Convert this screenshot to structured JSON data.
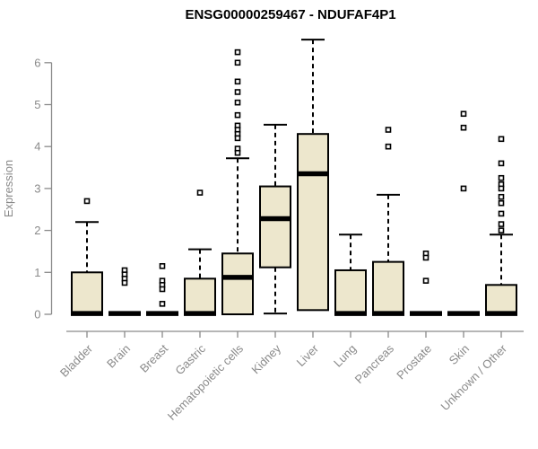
{
  "chart_data": {
    "type": "boxplot",
    "title": "ENSG00000259467 - NDUFAF4P1",
    "ylabel": "Expression",
    "xlabel": "",
    "yticks": [
      0,
      1,
      2,
      3,
      4,
      5,
      6
    ],
    "ylim": [
      0,
      6.7
    ],
    "grid": false,
    "legend": "none",
    "colors": {
      "box_fill": "#EDE7CD",
      "box_stroke": "#000000",
      "median": "#000000",
      "whisker": "#000000",
      "outlier_fill": "#FFFFFF",
      "outlier_stroke": "#000000",
      "axis": "#8A8A8A",
      "tick_label": "#8A8A8A",
      "title": "#000000"
    },
    "categories": [
      "Bladder",
      "Brain",
      "Breast",
      "Gastric",
      "Hematopoietic cells",
      "Kidney",
      "Liver",
      "Lung",
      "Pancreas",
      "Prostate",
      "Skin",
      "Unknown / Other"
    ],
    "series": [
      {
        "name": "Bladder",
        "q1": 0,
        "median": 0.02,
        "q3": 1.0,
        "whisker_low": 0,
        "whisker_high": 2.2,
        "outliers": [
          2.7
        ]
      },
      {
        "name": "Brain",
        "q1": 0,
        "median": 0.02,
        "q3": 0,
        "whisker_low": 0,
        "whisker_high": 0,
        "outliers": [
          1.05,
          0.95,
          0.85,
          0.75
        ]
      },
      {
        "name": "Breast",
        "q1": 0,
        "median": 0.02,
        "q3": 0,
        "whisker_low": 0,
        "whisker_high": 0,
        "outliers": [
          1.15,
          0.8,
          0.7,
          0.6,
          0.25
        ]
      },
      {
        "name": "Gastric",
        "q1": 0,
        "median": 0.02,
        "q3": 0.85,
        "whisker_low": 0,
        "whisker_high": 1.55,
        "outliers": [
          2.9
        ]
      },
      {
        "name": "Hematopoietic cells",
        "q1": 0,
        "median": 0.88,
        "q3": 1.45,
        "whisker_low": 0,
        "whisker_high": 3.72,
        "outliers": [
          6.25,
          6.0,
          5.55,
          5.3,
          5.05,
          4.75,
          4.5,
          4.4,
          4.3,
          4.2,
          3.95,
          3.85
        ]
      },
      {
        "name": "Kidney",
        "q1": 1.12,
        "median": 2.28,
        "q3": 3.05,
        "whisker_low": 0.02,
        "whisker_high": 4.52,
        "outliers": []
      },
      {
        "name": "Liver",
        "q1": 0.1,
        "median": 3.35,
        "q3": 4.3,
        "whisker_low": 0.1,
        "whisker_high": 6.55,
        "outliers": []
      },
      {
        "name": "Lung",
        "q1": 0,
        "median": 0.02,
        "q3": 1.05,
        "whisker_low": 0,
        "whisker_high": 1.9,
        "outliers": []
      },
      {
        "name": "Pancreas",
        "q1": 0,
        "median": 0.02,
        "q3": 1.25,
        "whisker_low": 0,
        "whisker_high": 2.85,
        "outliers": [
          4.4,
          4.0
        ]
      },
      {
        "name": "Prostate",
        "q1": 0,
        "median": 0.02,
        "q3": 0,
        "whisker_low": 0,
        "whisker_high": 0,
        "outliers": [
          1.45,
          1.35,
          0.8
        ]
      },
      {
        "name": "Skin",
        "q1": 0,
        "median": 0.02,
        "q3": 0,
        "whisker_low": 0,
        "whisker_high": 0,
        "outliers": [
          4.78,
          4.45,
          3.0
        ]
      },
      {
        "name": "Unknown / Other",
        "q1": 0,
        "median": 0.02,
        "q3": 0.7,
        "whisker_low": 0,
        "whisker_high": 1.9,
        "outliers": [
          4.18,
          3.6,
          3.25,
          3.1,
          3.0,
          2.8,
          2.65,
          2.4,
          2.15,
          2.0
        ]
      }
    ]
  }
}
